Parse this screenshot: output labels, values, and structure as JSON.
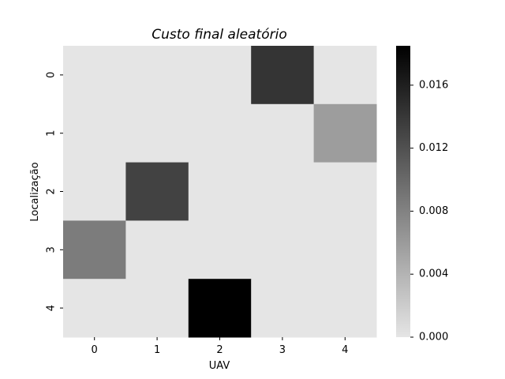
{
  "chart_data": {
    "type": "heatmap",
    "title": "Custo final aleatório",
    "xlabel": "UAV",
    "ylabel": "Localização",
    "x_categories": [
      "0",
      "1",
      "2",
      "3",
      "4"
    ],
    "y_categories": [
      "0",
      "1",
      "2",
      "3",
      "4"
    ],
    "values": [
      [
        0,
        0,
        0,
        0.0143,
        0
      ],
      [
        0,
        0,
        0,
        0,
        0.0058
      ],
      [
        0,
        0.0132,
        0,
        0,
        0
      ],
      [
        0.0085,
        0,
        0,
        0,
        0
      ],
      [
        0,
        0,
        0.0185,
        0,
        0
      ]
    ],
    "colorbar": {
      "min": 0,
      "max": 0.0185,
      "ticks": [
        0,
        0.004,
        0.008,
        0.012,
        0.016
      ],
      "tick_labels": [
        "0.000",
        "0.004",
        "0.008",
        "0.012",
        "0.016"
      ],
      "color_low": "#e5e5e5",
      "color_high": "#000000"
    }
  }
}
